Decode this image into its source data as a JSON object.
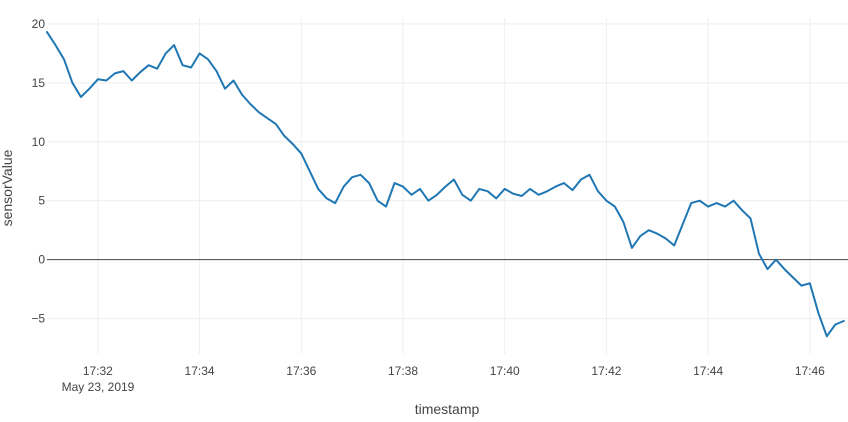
{
  "chart_data": {
    "type": "line",
    "xlabel": "timestamp",
    "ylabel": "sensorValue",
    "date_label": "May 23, 2019",
    "x_range": [
      "17:31:00",
      "17:46:45"
    ],
    "ylim": [
      -8,
      20.5
    ],
    "x_ticks": [
      "17:32",
      "17:34",
      "17:36",
      "17:38",
      "17:40",
      "17:42",
      "17:44",
      "17:46"
    ],
    "y_ticks": [
      -5,
      0,
      5,
      10,
      15,
      20
    ],
    "grid": true,
    "zero_line": true,
    "line_color": "#1f77b4",
    "series": [
      {
        "name": "",
        "points": [
          [
            "17:31:00",
            19.3
          ],
          [
            "17:31:10",
            18.2
          ],
          [
            "17:31:20",
            17.0
          ],
          [
            "17:31:30",
            15.0
          ],
          [
            "17:31:40",
            13.8
          ],
          [
            "17:31:50",
            14.5
          ],
          [
            "17:32:00",
            15.3
          ],
          [
            "17:32:10",
            15.2
          ],
          [
            "17:32:20",
            15.8
          ],
          [
            "17:32:30",
            16.0
          ],
          [
            "17:32:40",
            15.2
          ],
          [
            "17:32:50",
            15.9
          ],
          [
            "17:33:00",
            16.5
          ],
          [
            "17:33:10",
            16.2
          ],
          [
            "17:33:20",
            17.5
          ],
          [
            "17:33:30",
            18.2
          ],
          [
            "17:33:40",
            16.5
          ],
          [
            "17:33:50",
            16.3
          ],
          [
            "17:34:00",
            17.5
          ],
          [
            "17:34:10",
            17.0
          ],
          [
            "17:34:20",
            16.0
          ],
          [
            "17:34:30",
            14.5
          ],
          [
            "17:34:40",
            15.2
          ],
          [
            "17:34:50",
            14.0
          ],
          [
            "17:35:00",
            13.2
          ],
          [
            "17:35:10",
            12.5
          ],
          [
            "17:35:20",
            12.0
          ],
          [
            "17:35:30",
            11.5
          ],
          [
            "17:35:40",
            10.5
          ],
          [
            "17:35:50",
            9.8
          ],
          [
            "17:36:00",
            9.0
          ],
          [
            "17:36:10",
            7.5
          ],
          [
            "17:36:20",
            6.0
          ],
          [
            "17:36:30",
            5.2
          ],
          [
            "17:36:40",
            4.8
          ],
          [
            "17:36:50",
            6.2
          ],
          [
            "17:37:00",
            7.0
          ],
          [
            "17:37:10",
            7.2
          ],
          [
            "17:37:20",
            6.5
          ],
          [
            "17:37:30",
            5.0
          ],
          [
            "17:37:40",
            4.5
          ],
          [
            "17:37:50",
            6.5
          ],
          [
            "17:38:00",
            6.2
          ],
          [
            "17:38:10",
            5.5
          ],
          [
            "17:38:20",
            6.0
          ],
          [
            "17:38:30",
            5.0
          ],
          [
            "17:38:40",
            5.5
          ],
          [
            "17:38:50",
            6.2
          ],
          [
            "17:39:00",
            6.8
          ],
          [
            "17:39:10",
            5.5
          ],
          [
            "17:39:20",
            5.0
          ],
          [
            "17:39:30",
            6.0
          ],
          [
            "17:39:40",
            5.8
          ],
          [
            "17:39:50",
            5.2
          ],
          [
            "17:40:00",
            6.0
          ],
          [
            "17:40:10",
            5.6
          ],
          [
            "17:40:20",
            5.4
          ],
          [
            "17:40:30",
            6.0
          ],
          [
            "17:40:40",
            5.5
          ],
          [
            "17:40:50",
            5.8
          ],
          [
            "17:41:00",
            6.2
          ],
          [
            "17:41:10",
            6.5
          ],
          [
            "17:41:20",
            5.9
          ],
          [
            "17:41:30",
            6.8
          ],
          [
            "17:41:40",
            7.2
          ],
          [
            "17:41:50",
            5.8
          ],
          [
            "17:42:00",
            5.0
          ],
          [
            "17:42:10",
            4.5
          ],
          [
            "17:42:20",
            3.2
          ],
          [
            "17:42:30",
            1.0
          ],
          [
            "17:42:40",
            2.0
          ],
          [
            "17:42:50",
            2.5
          ],
          [
            "17:43:00",
            2.2
          ],
          [
            "17:43:10",
            1.8
          ],
          [
            "17:43:20",
            1.2
          ],
          [
            "17:43:30",
            3.0
          ],
          [
            "17:43:40",
            4.8
          ],
          [
            "17:43:50",
            5.0
          ],
          [
            "17:44:00",
            4.5
          ],
          [
            "17:44:10",
            4.8
          ],
          [
            "17:44:20",
            4.5
          ],
          [
            "17:44:30",
            5.0
          ],
          [
            "17:44:40",
            4.2
          ],
          [
            "17:44:50",
            3.5
          ],
          [
            "17:45:00",
            0.5
          ],
          [
            "17:45:10",
            -0.8
          ],
          [
            "17:45:20",
            0.0
          ],
          [
            "17:45:30",
            -0.8
          ],
          [
            "17:45:40",
            -1.5
          ],
          [
            "17:45:50",
            -2.2
          ],
          [
            "17:46:00",
            -2.0
          ],
          [
            "17:46:10",
            -4.5
          ],
          [
            "17:46:20",
            -6.5
          ],
          [
            "17:46:30",
            -5.5
          ],
          [
            "17:46:40",
            -5.2
          ]
        ]
      }
    ]
  }
}
